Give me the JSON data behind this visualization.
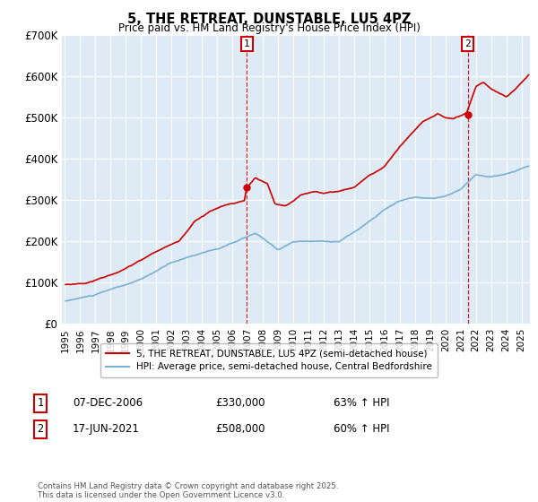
{
  "title": "5, THE RETREAT, DUNSTABLE, LU5 4PZ",
  "subtitle": "Price paid vs. HM Land Registry's House Price Index (HPI)",
  "legend_line1": "5, THE RETREAT, DUNSTABLE, LU5 4PZ (semi-detached house)",
  "legend_line2": "HPI: Average price, semi-detached house, Central Bedfordshire",
  "annotation1_label": "1",
  "annotation1_date": "07-DEC-2006",
  "annotation1_price": 330000,
  "annotation1_pct": "63% ↑ HPI",
  "annotation2_label": "2",
  "annotation2_date": "17-JUN-2021",
  "annotation2_price": 508000,
  "annotation2_pct": "60% ↑ HPI",
  "footnote": "Contains HM Land Registry data © Crown copyright and database right 2025.\nThis data is licensed under the Open Government Licence v3.0.",
  "red_color": "#cc0000",
  "blue_color": "#7ab0d4",
  "bg_color": "#deeaf5",
  "grid_color": "#ffffff",
  "annotation_box_color": "#cc0000",
  "ylim": [
    0,
    700000
  ],
  "yticks": [
    0,
    100000,
    200000,
    300000,
    400000,
    500000,
    600000,
    700000
  ],
  "ytick_labels": [
    "£0",
    "£100K",
    "£200K",
    "£300K",
    "£400K",
    "£500K",
    "£600K",
    "£700K"
  ],
  "xstart_year": 1995,
  "xend_year": 2025
}
